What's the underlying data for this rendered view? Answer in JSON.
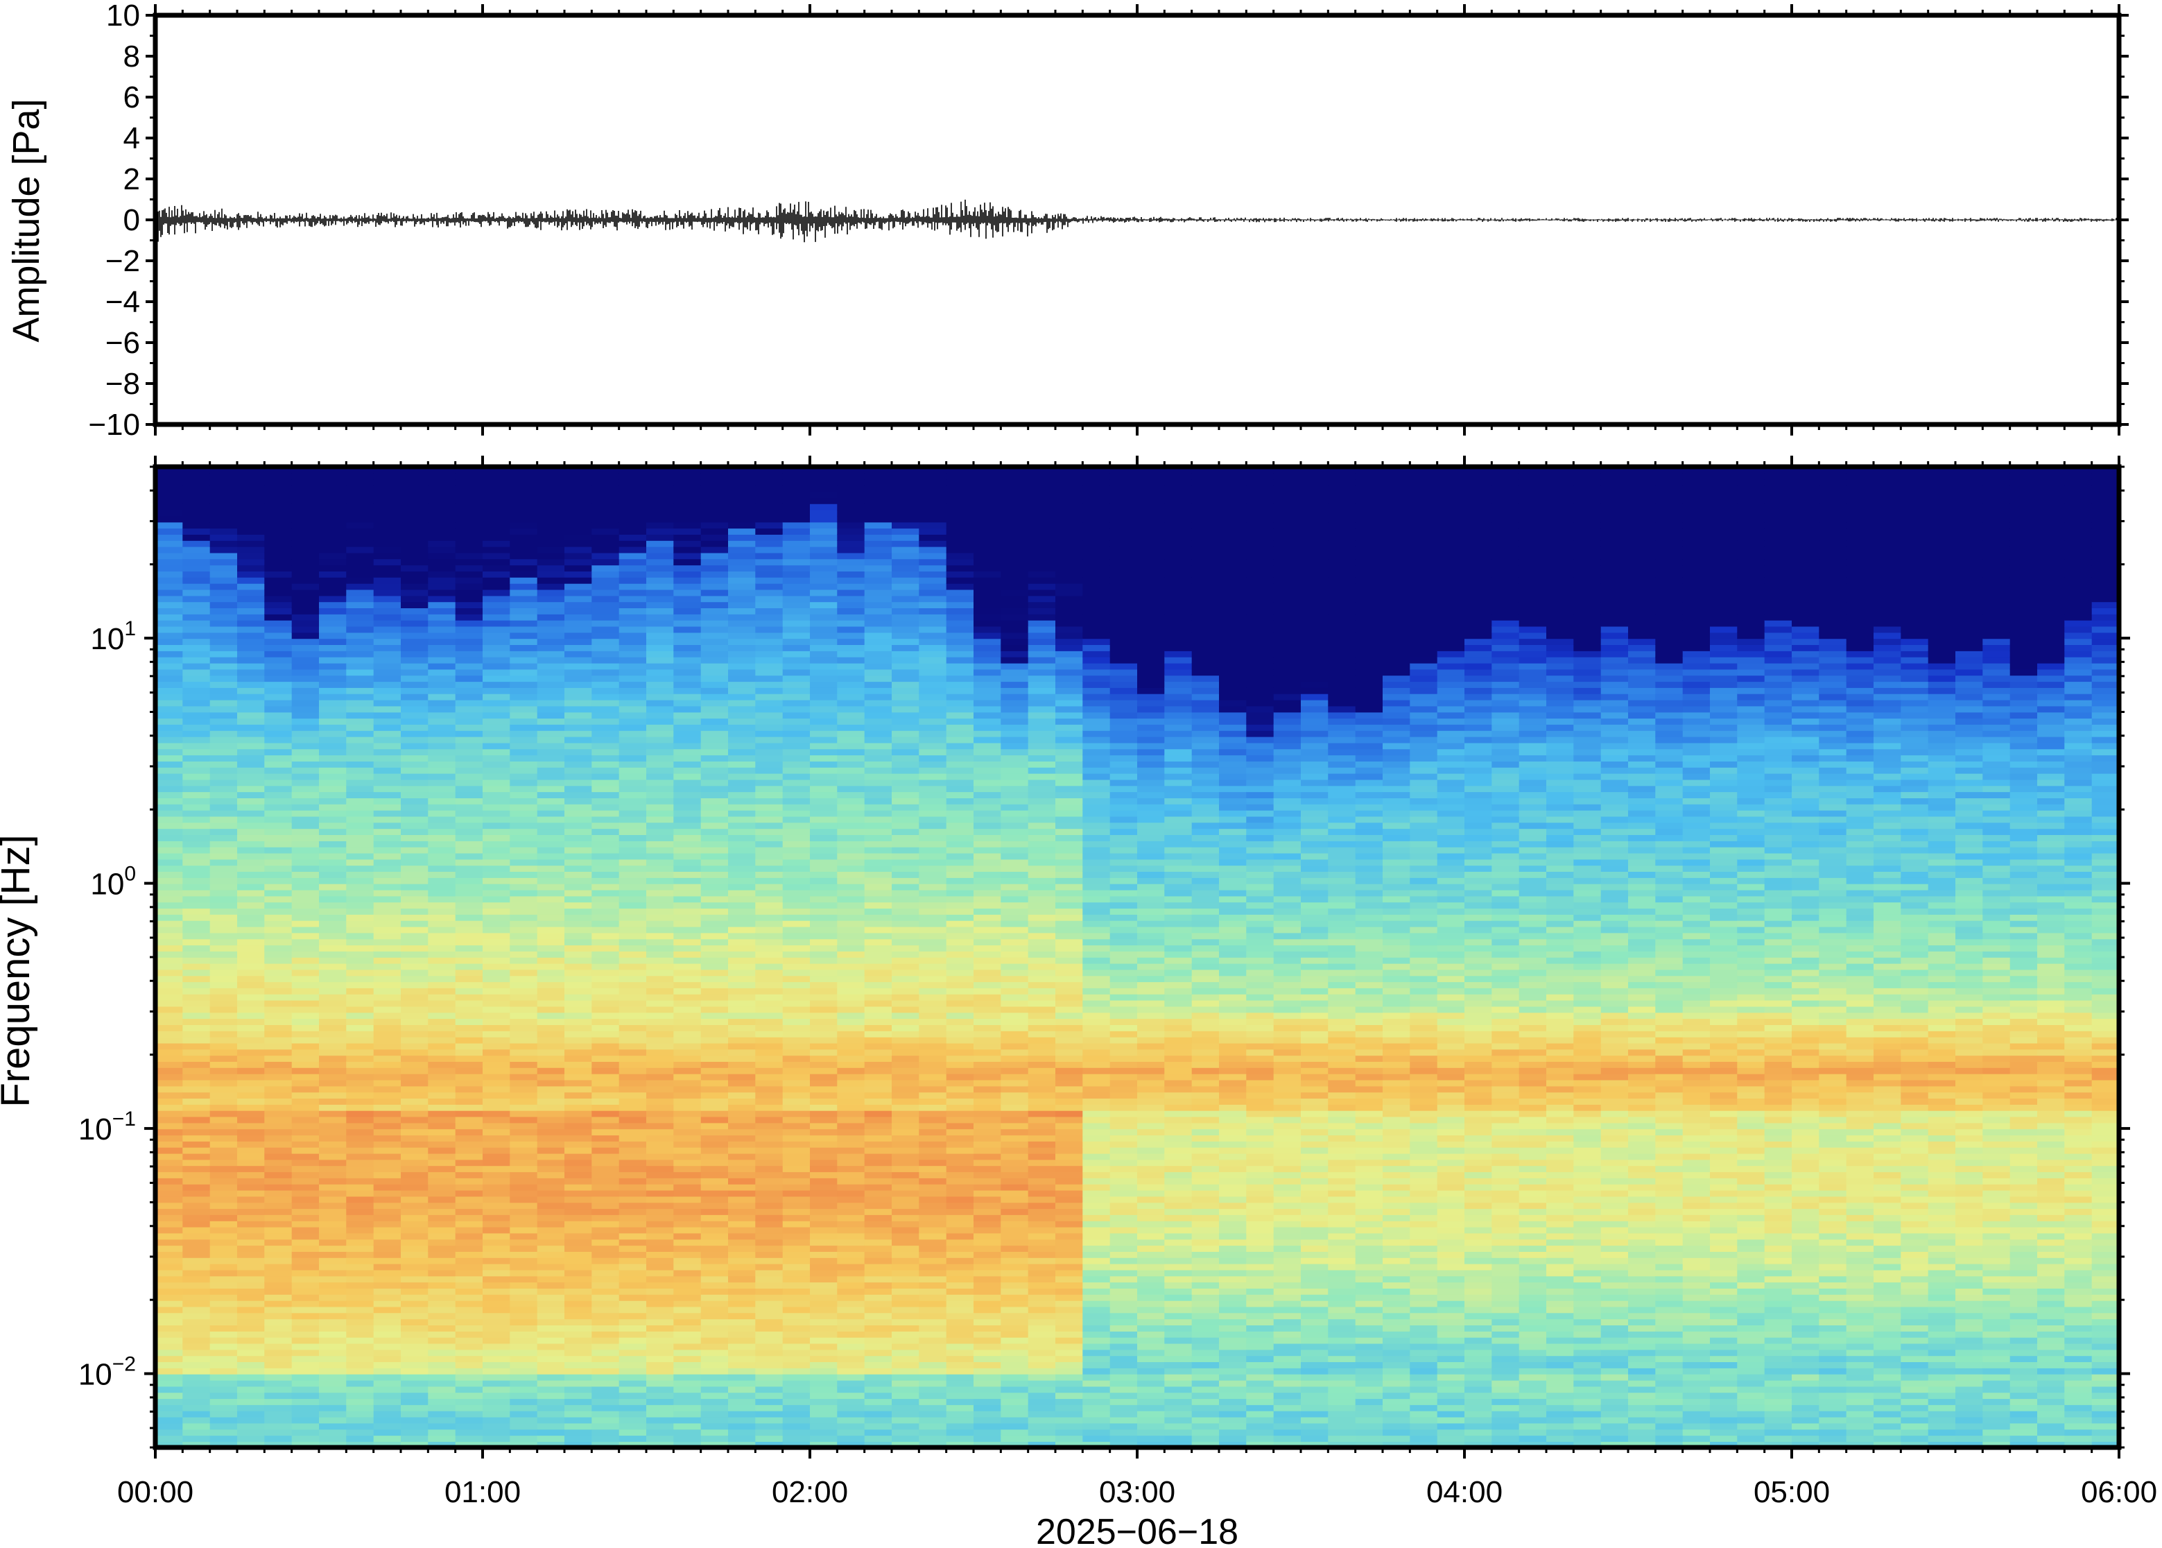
{
  "chart_data": [
    {
      "type": "line",
      "ylabel": "Amplitude [Pa]",
      "ylim": [
        -10,
        10
      ],
      "y_ticks": [
        10,
        8,
        6,
        4,
        2,
        0,
        -2,
        -4,
        -6,
        -8,
        -10
      ],
      "y_tick_labels": [
        "10",
        "8",
        "6",
        "4",
        "2",
        "0",
        "−2",
        "−4",
        "−6",
        "−8",
        "−10"
      ],
      "xlim": [
        "00:00",
        "06:00"
      ],
      "grid": false,
      "envelope": {
        "x_minutes": [
          0,
          10,
          20,
          30,
          40,
          50,
          60,
          70,
          80,
          90,
          100,
          110,
          120,
          130,
          140,
          150,
          160,
          170,
          180,
          200,
          220,
          240,
          260,
          280,
          300,
          320,
          340,
          360
        ],
        "max": [
          0.9,
          0.6,
          0.4,
          0.35,
          0.35,
          0.4,
          0.4,
          0.5,
          0.55,
          0.55,
          0.6,
          0.7,
          1.0,
          0.6,
          0.5,
          1.2,
          0.5,
          0.2,
          0.15,
          0.12,
          0.1,
          0.1,
          0.1,
          0.1,
          0.1,
          0.1,
          0.1,
          0.1
        ],
        "min": [
          -1.1,
          -0.6,
          -0.4,
          -0.35,
          -0.35,
          -0.4,
          -0.4,
          -0.5,
          -0.55,
          -0.55,
          -0.6,
          -0.8,
          -1.2,
          -0.6,
          -0.5,
          -1.0,
          -0.9,
          -0.2,
          -0.15,
          -0.12,
          -0.1,
          -0.1,
          -0.1,
          -0.1,
          -0.1,
          -0.1,
          -0.1,
          -0.1
        ]
      }
    },
    {
      "type": "heatmap",
      "ylabel": "Frequency [Hz]",
      "xlabel": "2025−06−18",
      "y_scale": "log",
      "ylim": [
        0.005,
        50
      ],
      "y_ticks": [
        10,
        1,
        0.1,
        0.01
      ],
      "y_tick_labels": [
        {
          "base": "10",
          "exp": "1"
        },
        {
          "base": "10",
          "exp": "0"
        },
        {
          "base": "10",
          "exp": "−1"
        },
        {
          "base": "10",
          "exp": "−2"
        }
      ],
      "x_ticks": [
        "00:00",
        "01:00",
        "02:00",
        "03:00",
        "04:00",
        "05:00",
        "06:00"
      ],
      "xlim": [
        "00:00",
        "06:00"
      ],
      "colormap": [
        "#0a0a7a",
        "#1532c8",
        "#2e7ee6",
        "#4dbfee",
        "#8ee8c0",
        "#e6f08c",
        "#f6c85c",
        "#f08a48",
        "#e0503a"
      ],
      "time_bin_minutes": 5,
      "high_freq_cutoff_hz": [
        30,
        25,
        22,
        18,
        12,
        10,
        14,
        16,
        15,
        13,
        14,
        12,
        15,
        18,
        16,
        17,
        20,
        22,
        25,
        20,
        22,
        28,
        26,
        30,
        35,
        22,
        30,
        28,
        24,
        16,
        10,
        8,
        12,
        9,
        10,
        8,
        6,
        9,
        7,
        5,
        4,
        5,
        6,
        5,
        5,
        7,
        8,
        9,
        10,
        12,
        11,
        10,
        9,
        11,
        10,
        8,
        9,
        11,
        10,
        12,
        11,
        10,
        9,
        11,
        10,
        8,
        9,
        10,
        7,
        8,
        12,
        14
      ],
      "level_by_frequency_hz": [
        {
          "freq_hz": 0.007,
          "level": 0.45
        },
        {
          "freq_hz": 0.02,
          "level": 0.6
        },
        {
          "freq_hz": 0.05,
          "level": 0.7
        },
        {
          "freq_hz": 0.1,
          "level": 0.68
        },
        {
          "freq_hz": 0.17,
          "level": 0.8
        },
        {
          "freq_hz": 0.3,
          "level": 0.62
        },
        {
          "freq_hz": 1,
          "level": 0.48
        },
        {
          "freq_hz": 3,
          "level": 0.4
        },
        {
          "freq_hz": 10,
          "level": 0.28
        }
      ]
    }
  ]
}
